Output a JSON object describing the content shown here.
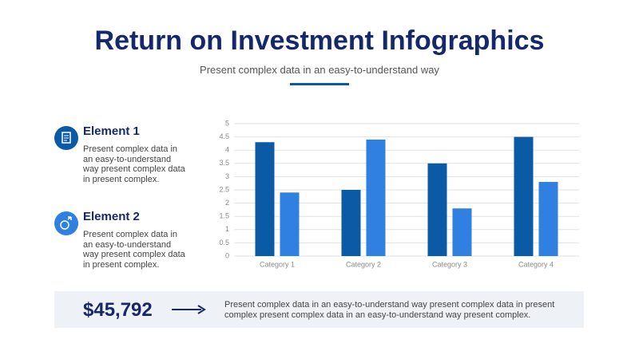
{
  "header": {
    "title": "Return on Investment Infographics",
    "subtitle": "Present complex data in an easy-to-understand way"
  },
  "elements": [
    {
      "title": "Element 1",
      "text": "Present complex data in an easy-to-understand way present complex data in present complex."
    },
    {
      "title": "Element 2",
      "text": "Present complex data in an easy-to-understand way present complex data in present complex."
    }
  ],
  "chart_data": {
    "type": "bar",
    "categories": [
      "Category 1",
      "Category 2",
      "Category 3",
      "Category 4"
    ],
    "series": [
      {
        "color": "#0b5aa5",
        "values": [
          4.3,
          2.5,
          3.5,
          4.5
        ]
      },
      {
        "color": "#2f80e0",
        "values": [
          2.4,
          4.4,
          1.8,
          2.8
        ]
      }
    ],
    "ylim": [
      0,
      5
    ],
    "yticks": [
      0,
      0.5,
      1,
      1.5,
      2,
      2.5,
      3,
      3.5,
      4,
      4.5,
      5
    ],
    "grid": true
  },
  "footer": {
    "amount": "$45,792",
    "text": "Present complex data in an easy-to-understand way present complex data in present complex present complex data in an easy-to-understand way present complex."
  }
}
